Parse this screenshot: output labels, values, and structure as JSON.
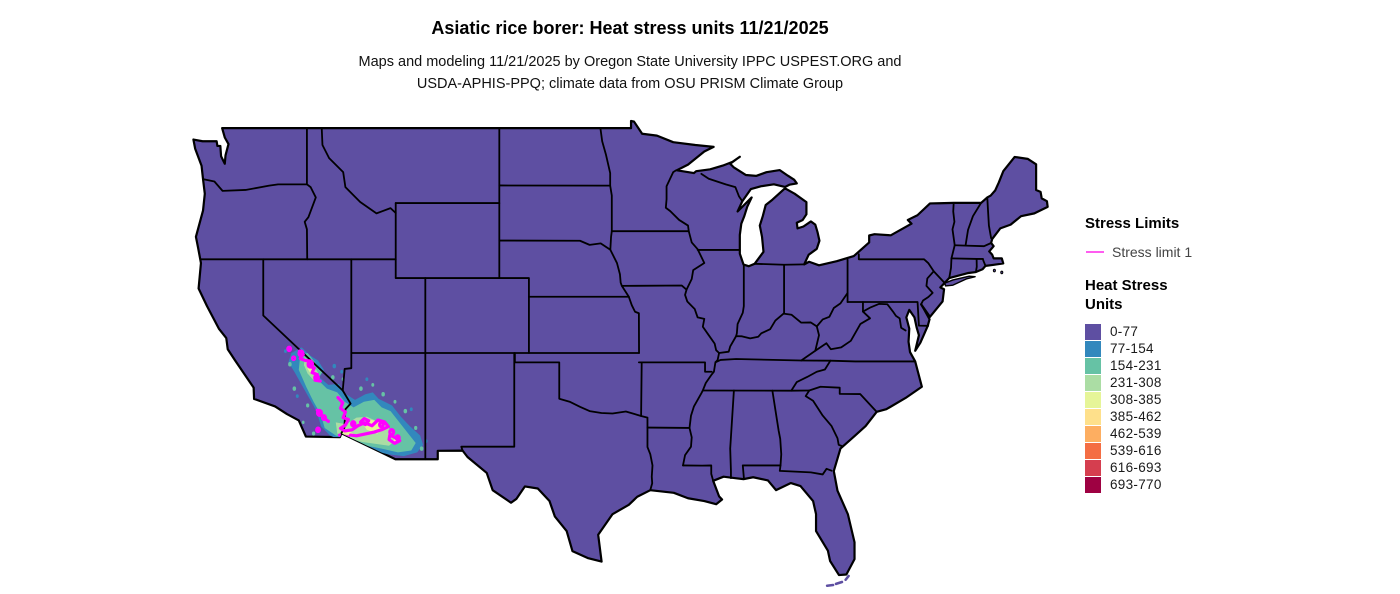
{
  "title": "Asiatic rice borer: Heat stress units 11/21/2025",
  "subtitle_line1": "Maps and modeling 11/21/2025 by Oregon State University IPPC USPEST.ORG and",
  "subtitle_line2": "USDA-APHIS-PPQ; climate data from OSU PRISM Climate Group",
  "map": {
    "region": "Contiguous United States",
    "base_fill_color": "#5e4fa2",
    "state_border_color": "#000000",
    "stress_limit_line_color": "#ff00ff",
    "hotspot_region": "Southern California and southern Arizona"
  },
  "legend": {
    "stress_limits": {
      "title": "Stress Limits",
      "items": [
        {
          "label": "Stress limit 1",
          "marker": "line",
          "color": "#ff5cf0"
        }
      ]
    },
    "heat_stress": {
      "title": "Heat Stress\nUnits",
      "items": [
        {
          "label": "0-77",
          "color": "#5e4fa2"
        },
        {
          "label": "77-154",
          "color": "#3288bd"
        },
        {
          "label": "154-231",
          "color": "#66c2a5"
        },
        {
          "label": "231-308",
          "color": "#abdda4"
        },
        {
          "label": "308-385",
          "color": "#e6f598"
        },
        {
          "label": "385-462",
          "color": "#fee08b"
        },
        {
          "label": "462-539",
          "color": "#fdae61"
        },
        {
          "label": "539-616",
          "color": "#f46d43"
        },
        {
          "label": "616-693",
          "color": "#d53e4f"
        },
        {
          "label": "693-770",
          "color": "#9e0142"
        }
      ]
    }
  }
}
